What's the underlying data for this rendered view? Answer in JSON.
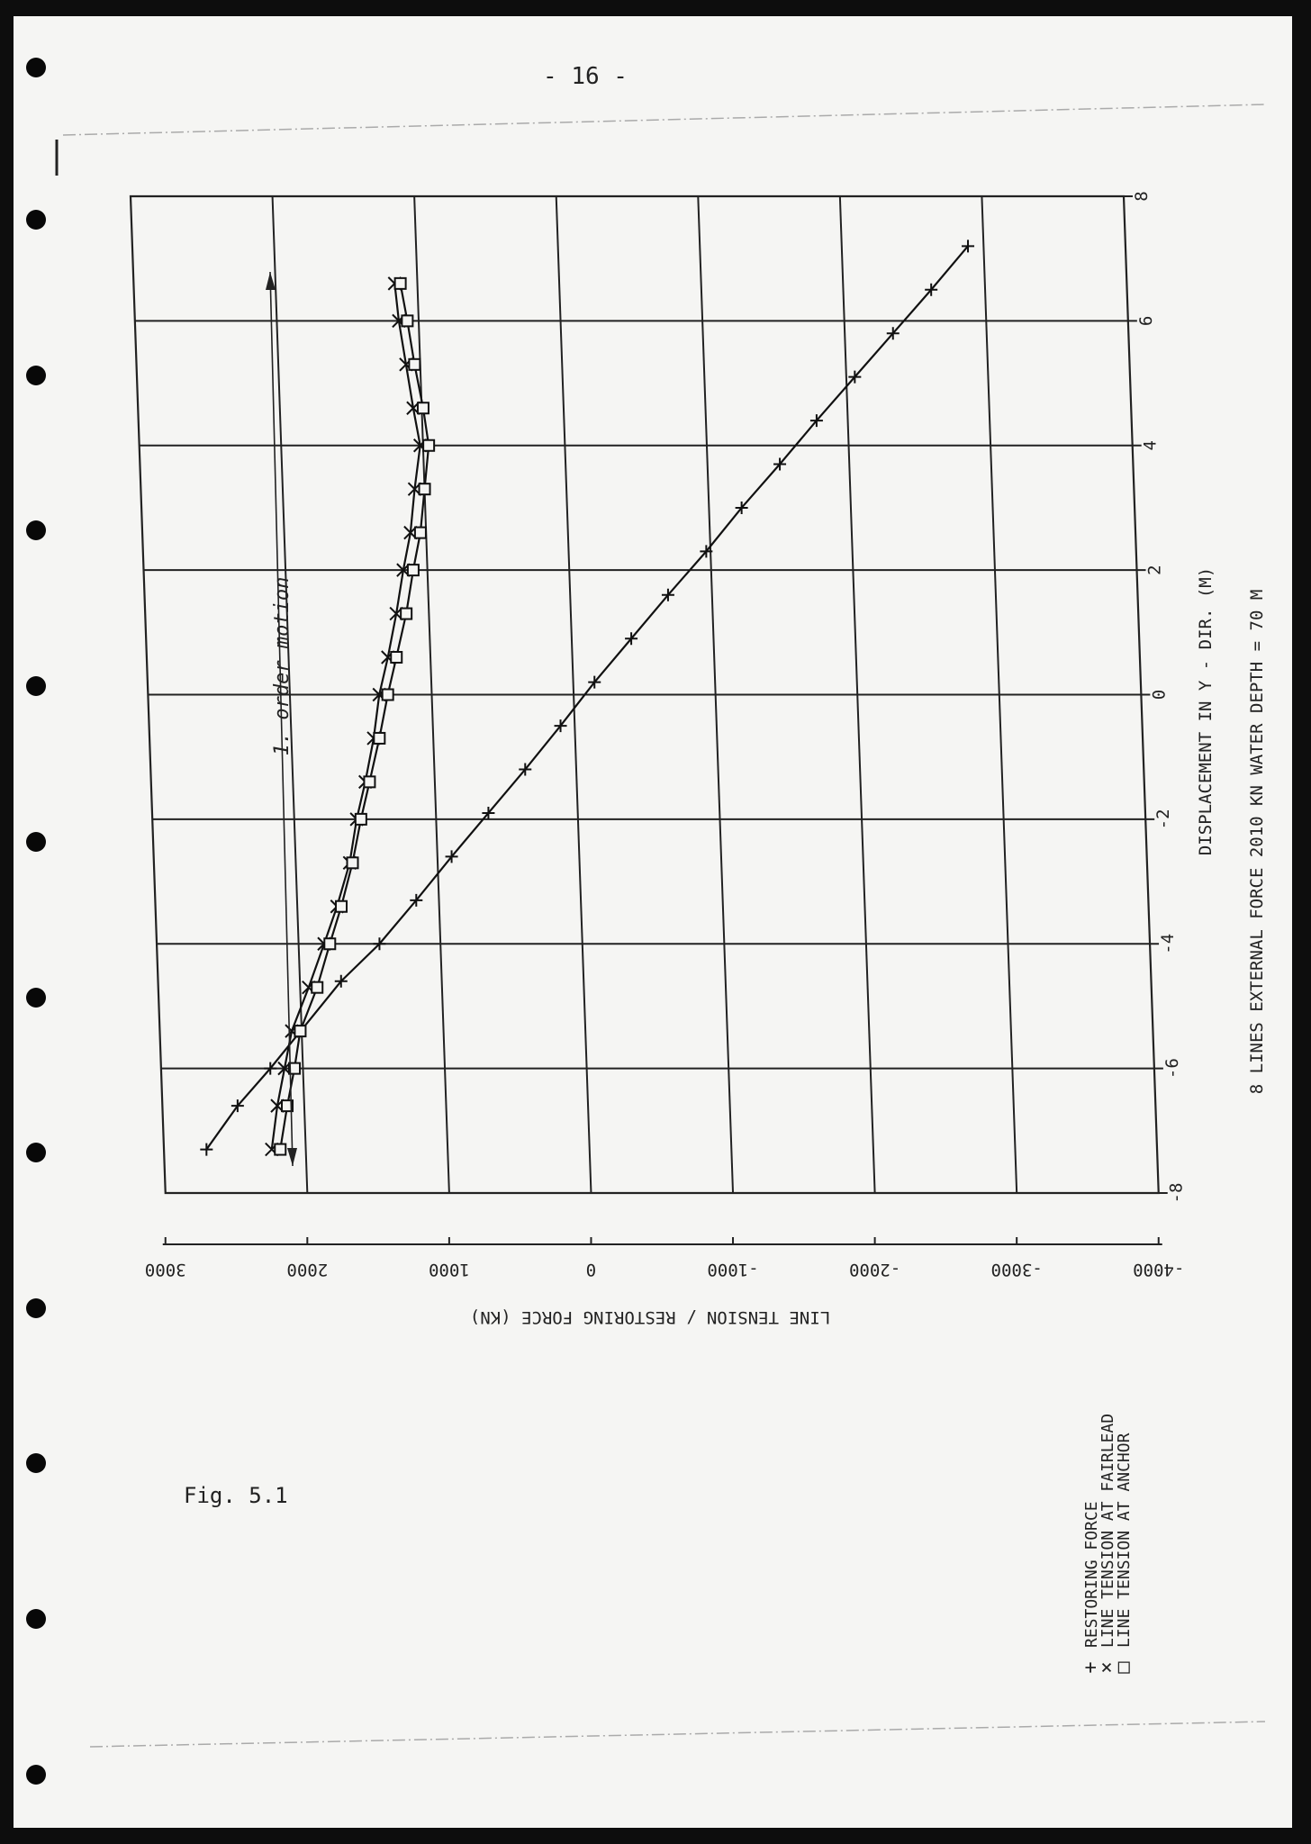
{
  "page": {
    "number": "- 16 -",
    "caption": "Fig. 5.1"
  },
  "chart_data": {
    "type": "line",
    "x_label": "DISPLACEMENT IN Y - DIR. (M)",
    "y_label": "LINE TENSION / RESTORING FORCE (KN)",
    "info_line": "8 LINES    EXTERNAL FORCE 2010 KN    WATER DEPTH =  70 M",
    "x_ticks": [
      "-8",
      "-6",
      "-4",
      "-2",
      "0",
      "2",
      "4",
      "6",
      "8"
    ],
    "y_ticks": [
      "3000",
      "2000",
      "1000",
      "0",
      "-1000",
      "-2000",
      "-3000",
      "-4000"
    ],
    "xlim": [
      -8,
      8
    ],
    "ylim": [
      -4000,
      3000
    ],
    "annotation": "1. order motion",
    "grid": true,
    "legend_position": "bottom-right",
    "legend": [
      {
        "symbol": "+",
        "label": "RESTORING FORCE"
      },
      {
        "symbol": "×",
        "label": "LINE TENSION AT FAIRLEAD"
      },
      {
        "symbol": "□",
        "label": "LINE TENSION AT ANCHOR"
      }
    ],
    "series": [
      {
        "name": "RESTORING FORCE",
        "marker": "plus",
        "x": [
          -7.3,
          -6.6,
          -6.0,
          -4.6,
          -4.0,
          -3.3,
          -2.6,
          -1.9,
          -1.2,
          -0.5,
          0.2,
          0.9,
          1.6,
          2.3,
          3.0,
          3.7,
          4.4,
          5.1,
          5.8,
          6.5,
          7.2
        ],
        "y": [
          2700,
          2470,
          2230,
          1710,
          1430,
          1160,
          900,
          630,
          360,
          100,
          -150,
          -420,
          -690,
          -970,
          -1230,
          -1510,
          -1780,
          -2060,
          -2340,
          -2620,
          -2890
        ]
      },
      {
        "name": "LINE TENSION AT FAIRLEAD",
        "marker": "x",
        "x": [
          -7.3,
          -6.6,
          -6.0,
          -5.4,
          -4.7,
          -4.0,
          -3.4,
          -2.7,
          -2.0,
          -1.4,
          -0.7,
          0.0,
          0.6,
          1.3,
          2.0,
          2.6,
          3.3,
          4.0,
          4.6,
          5.3,
          6.0,
          6.6
        ],
        "y": [
          2240,
          2190,
          2130,
          2070,
          1940,
          1820,
          1720,
          1620,
          1560,
          1490,
          1420,
          1370,
          1300,
          1230,
          1170,
          1110,
          1070,
          1020,
          1060,
          1100,
          1140,
          1160
        ]
      },
      {
        "name": "LINE TENSION AT ANCHOR",
        "marker": "square",
        "x": [
          -7.3,
          -6.6,
          -6.0,
          -5.4,
          -4.7,
          -4.0,
          -3.4,
          -2.7,
          -2.0,
          -1.4,
          -0.7,
          0.0,
          0.6,
          1.3,
          2.0,
          2.6,
          3.3,
          4.0,
          4.6,
          5.3,
          6.0,
          6.6
        ],
        "y": [
          2180,
          2120,
          2060,
          2010,
          1880,
          1780,
          1690,
          1600,
          1530,
          1460,
          1380,
          1310,
          1240,
          1160,
          1100,
          1040,
          1000,
          960,
          990,
          1040,
          1080,
          1120
        ]
      }
    ]
  }
}
